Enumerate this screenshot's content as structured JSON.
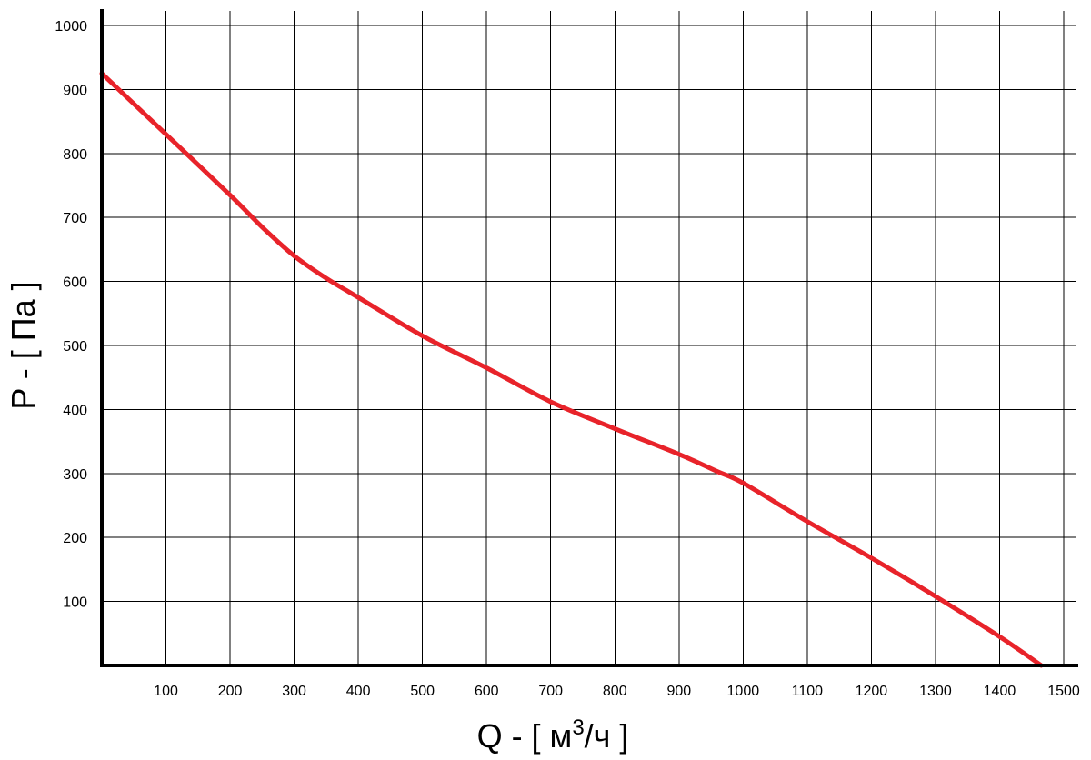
{
  "chart_data": {
    "type": "line",
    "xlabel_parts": {
      "prefix": "Q - [ м",
      "sup": "3",
      "suffix": "/ч ]"
    },
    "ylabel": "P - [ Па ]",
    "xlim": [
      0,
      1500
    ],
    "ylim": [
      0,
      1000
    ],
    "x_ticks": [
      100,
      200,
      300,
      400,
      500,
      600,
      700,
      800,
      900,
      1000,
      1100,
      1200,
      1300,
      1400,
      1500
    ],
    "y_ticks": [
      100,
      200,
      300,
      400,
      500,
      600,
      700,
      800,
      900,
      1000
    ],
    "grid": true,
    "series": [
      {
        "color": "#e8232a",
        "x": [
          0,
          100,
          200,
          250,
          300,
          350,
          400,
          500,
          600,
          700,
          800,
          900,
          960,
          1000,
          1100,
          1200,
          1300,
          1400,
          1465
        ],
        "y": [
          925,
          830,
          735,
          685,
          640,
          605,
          575,
          515,
          465,
          412,
          370,
          330,
          303,
          285,
          225,
          168,
          108,
          45,
          0
        ]
      }
    ]
  }
}
